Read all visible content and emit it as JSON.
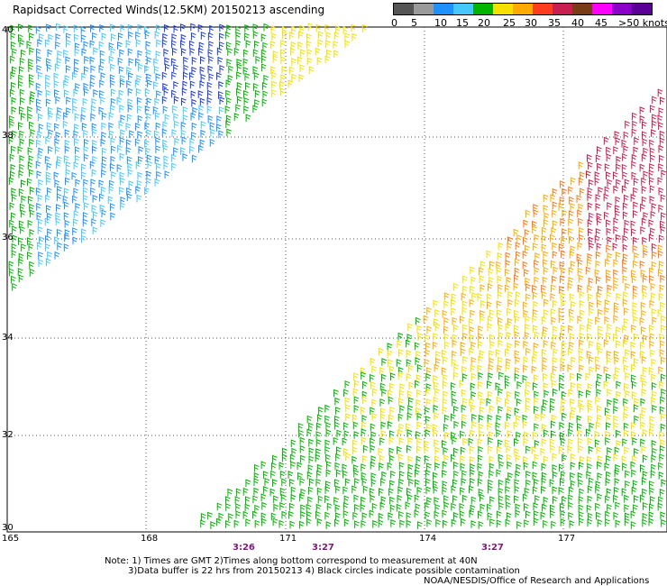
{
  "title": "Rapidsact Corrected Winds(12.5KM) 20150213 ascending",
  "legend": {
    "labels": [
      "0",
      "5",
      "10",
      "15",
      "20",
      "25",
      "30",
      "35",
      "40",
      "45",
      ">50 knots"
    ],
    "colors": [
      "#555555",
      "#9a9a9a",
      "#1e90ff",
      "#46c8ff",
      "#00b400",
      "#f5e000",
      "#ffaa00",
      "#ff3c1e",
      "#c81e50",
      "#7a3c14",
      "#ff00ff",
      "#8a00c8",
      "#5a0096"
    ]
  },
  "axes": {
    "lat_labels": [
      "40",
      "38",
      "36",
      "34",
      "32",
      "30"
    ],
    "lon_labels": [
      "165",
      "168",
      "171",
      "174",
      "177"
    ]
  },
  "times": [
    "3:26",
    "3:27",
    "3:27"
  ],
  "notes": {
    "line1": "Note: 1) Times are GMT 2)Times along bottom correspond to measurement at 40N",
    "line2": "3)Data buffer is 22 hrs from 20150213 4) Black circles indicate possible contamination",
    "line3": "NOAA/NESDIS/Office of Research and Applications"
  }
}
